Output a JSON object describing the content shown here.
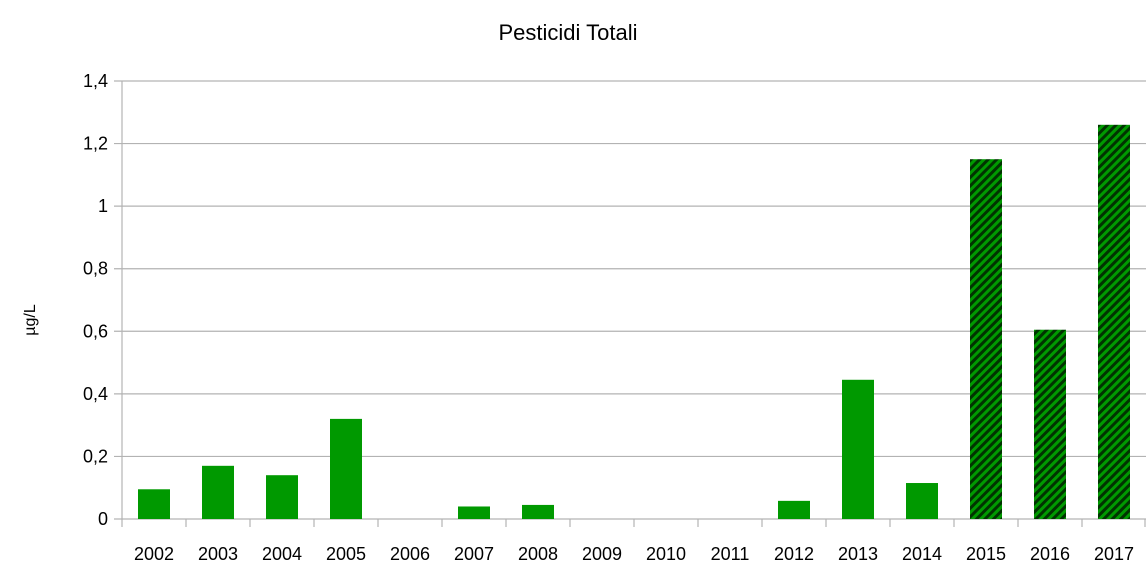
{
  "chart_data": {
    "type": "bar",
    "title": "Pesticidi Totali",
    "xlabel": "",
    "ylabel": "µg/L",
    "categories": [
      "2002",
      "2003",
      "2004",
      "2005",
      "2006",
      "2007",
      "2008",
      "2009",
      "2010",
      "2011",
      "2012",
      "2013",
      "2014",
      "2015",
      "2016",
      "2017"
    ],
    "values": [
      0.095,
      0.17,
      0.14,
      0.32,
      0,
      0.04,
      0.045,
      0,
      0,
      0,
      0.058,
      0.445,
      0.115,
      1.15,
      0.605,
      1.26
    ],
    "hatched": [
      false,
      false,
      false,
      false,
      false,
      false,
      false,
      false,
      false,
      false,
      false,
      false,
      false,
      true,
      true,
      true
    ],
    "ylim": [
      0,
      1.4
    ],
    "yticks": [
      0,
      0.2,
      0.4,
      0.6,
      0.8,
      1,
      1.2,
      1.4
    ],
    "ytick_labels": [
      "0",
      "0,2",
      "0,4",
      "0,6",
      "0,8",
      "1",
      "1,2",
      "1,4"
    ],
    "grid": true,
    "colors": {
      "bar": "#009900",
      "hatch": "#003300",
      "grid": "#b3b3b3"
    }
  }
}
